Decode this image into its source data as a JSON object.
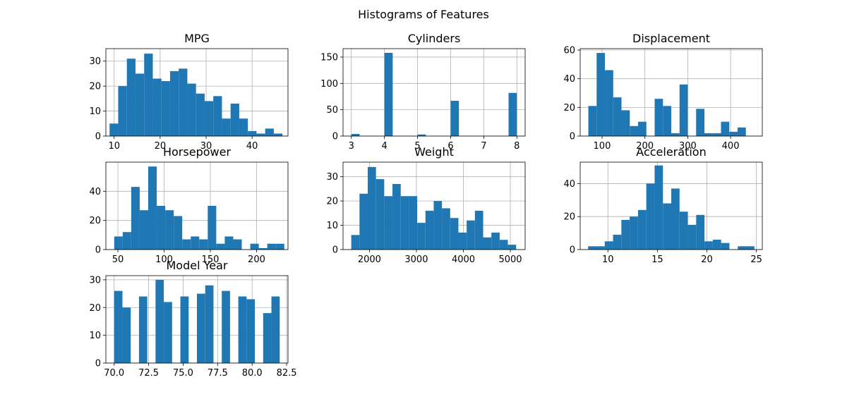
{
  "suptitle": "Histograms of Features",
  "colors": {
    "bar": "#1f77b4",
    "grid": "#b0b0b0"
  },
  "chart_data": [
    {
      "type": "bar",
      "title": "MPG",
      "bin_start": 9,
      "bin_width": 1.88,
      "values": [
        5,
        20,
        31,
        25,
        33,
        23,
        22,
        26,
        27,
        21,
        17,
        14,
        16,
        7,
        13,
        7,
        2,
        1,
        3,
        1
      ],
      "xlim": [
        8.2,
        47.8
      ],
      "ylim": [
        0,
        35
      ],
      "xticks": [
        10,
        20,
        30,
        40
      ],
      "yticks": [
        0,
        10,
        20,
        30
      ],
      "xlabel": "",
      "ylabel": "",
      "grid": true
    },
    {
      "type": "bar",
      "title": "Cylinders",
      "bin_start": 3,
      "bin_width": 0.25,
      "values": [
        4,
        0,
        0,
        0,
        158,
        0,
        0,
        0,
        3,
        0,
        0,
        0,
        67,
        0,
        0,
        0,
        0,
        0,
        0,
        82
      ],
      "xlim": [
        2.75,
        8.25
      ],
      "ylim": [
        0,
        166
      ],
      "xticks": [
        3,
        4,
        5,
        6,
        7,
        8
      ],
      "yticks": [
        0,
        50,
        100,
        150
      ],
      "xlabel": "",
      "ylabel": "",
      "grid": true
    },
    {
      "type": "bar",
      "title": "Displacement",
      "bin_start": 68,
      "bin_width": 19.35,
      "values": [
        21,
        58,
        46,
        27,
        18,
        7,
        10,
        0,
        26,
        21,
        2,
        36,
        0,
        19,
        2,
        2,
        10,
        3,
        6
      ],
      "xlim": [
        49,
        474
      ],
      "ylim": [
        0,
        61
      ],
      "xticks": [
        100,
        200,
        300,
        400
      ],
      "yticks": [
        0,
        20,
        40,
        60
      ],
      "xlabel": "",
      "ylabel": "",
      "grid": true
    },
    {
      "type": "bar",
      "title": "Horsepower",
      "bin_start": 46,
      "bin_width": 9.2,
      "values": [
        9,
        12,
        43,
        27,
        57,
        30,
        27,
        23,
        7,
        9,
        7,
        30,
        4,
        9,
        7,
        0,
        4,
        1,
        4,
        4
      ],
      "xlim": [
        37,
        234
      ],
      "ylim": [
        0,
        60
      ],
      "xticks": [
        50,
        100,
        150,
        200
      ],
      "yticks": [
        0,
        20,
        40
      ],
      "xlabel": "",
      "ylabel": "",
      "grid": true
    },
    {
      "type": "bar",
      "title": "Weight",
      "bin_start": 1613,
      "bin_width": 175.5,
      "values": [
        6,
        23,
        34,
        29,
        22,
        27,
        22,
        22,
        11,
        16,
        20,
        17,
        13,
        7,
        12,
        16,
        5,
        7,
        4,
        2
      ],
      "xlim": [
        1438,
        5315
      ],
      "ylim": [
        0,
        36
      ],
      "xticks": [
        2000,
        3000,
        4000,
        5000
      ],
      "yticks": [
        0,
        10,
        20,
        30
      ],
      "xlabel": "",
      "ylabel": "",
      "grid": true
    },
    {
      "type": "bar",
      "title": "Acceleration",
      "bin_start": 8,
      "bin_width": 0.84,
      "values": [
        2,
        2,
        5,
        9,
        18,
        20,
        24,
        40,
        51,
        28,
        37,
        23,
        15,
        21,
        5,
        6,
        4,
        0,
        2,
        2
      ],
      "xlim": [
        7.2,
        25.6
      ],
      "ylim": [
        0,
        53
      ],
      "xticks": [
        10,
        15,
        20,
        25
      ],
      "yticks": [
        0,
        20,
        40
      ],
      "xlabel": "",
      "ylabel": "",
      "grid": true
    },
    {
      "type": "bar",
      "title": "Model Year",
      "bin_start": 70,
      "bin_width": 0.6,
      "values": [
        26,
        20,
        0,
        24,
        0,
        30,
        22,
        0,
        24,
        0,
        25,
        28,
        0,
        26,
        0,
        24,
        23,
        0,
        18,
        24
      ],
      "xlim": [
        69.4,
        82.6
      ],
      "ylim": [
        0,
        31.5
      ],
      "xticks": [
        70.0,
        72.5,
        75.0,
        77.5,
        80.0,
        82.5
      ],
      "yticks": [
        0,
        10,
        20,
        30
      ],
      "xlabel": "",
      "ylabel": "",
      "grid": true
    }
  ]
}
